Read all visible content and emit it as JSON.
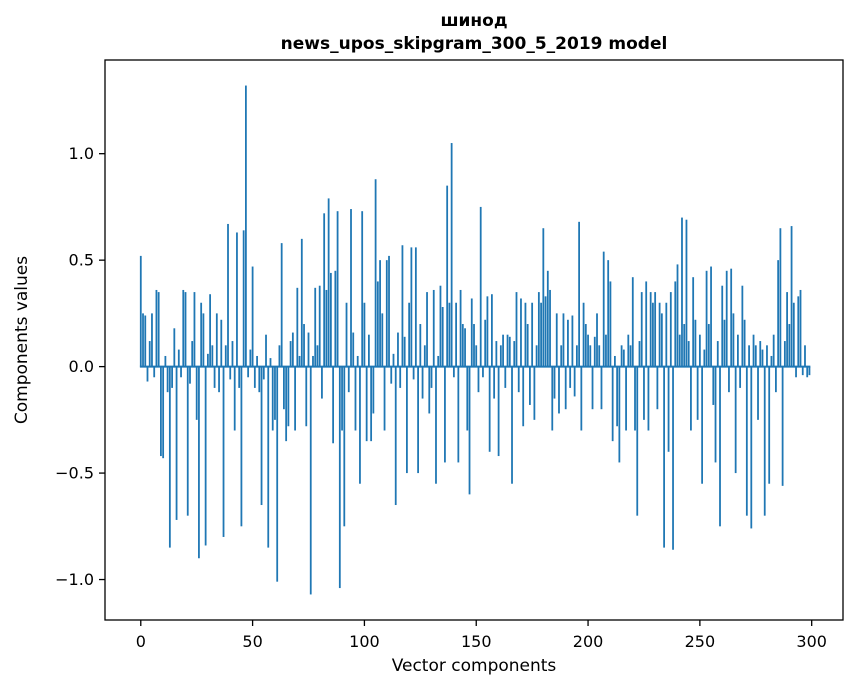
{
  "chart_data": {
    "type": "bar",
    "title_line1": "шинод",
    "title_line2": "news_upos_skipgram_300_5_2019 model",
    "xlabel": "Vector components",
    "ylabel": "Components values",
    "xlim": [
      -16,
      314
    ],
    "ylim": [
      -1.19,
      1.44
    ],
    "bar_color": "#1f77b4",
    "bar_width": 0.8,
    "x_start": 0,
    "xticks": [
      {
        "value": 0,
        "label": "0"
      },
      {
        "value": 50,
        "label": "50"
      },
      {
        "value": 100,
        "label": "100"
      },
      {
        "value": 150,
        "label": "150"
      },
      {
        "value": 200,
        "label": "200"
      },
      {
        "value": 250,
        "label": "250"
      },
      {
        "value": 300,
        "label": "300"
      }
    ],
    "yticks": [
      {
        "value": -1.0,
        "label": "−1.0"
      },
      {
        "value": -0.5,
        "label": "−0.5"
      },
      {
        "value": 0.0,
        "label": "0.0"
      },
      {
        "value": 0.5,
        "label": "0.5"
      },
      {
        "value": 1.0,
        "label": "1.0"
      }
    ],
    "values": [
      0.52,
      0.25,
      0.24,
      -0.07,
      0.12,
      0.25,
      -0.05,
      0.36,
      0.35,
      -0.42,
      -0.43,
      0.05,
      -0.12,
      -0.85,
      -0.1,
      0.18,
      -0.72,
      0.08,
      -0.05,
      0.36,
      0.35,
      -0.7,
      -0.08,
      0.12,
      0.35,
      -0.25,
      -0.9,
      0.3,
      0.25,
      -0.84,
      0.06,
      0.34,
      0.1,
      -0.1,
      0.25,
      -0.12,
      0.22,
      -0.8,
      0.1,
      0.67,
      -0.06,
      0.12,
      -0.3,
      0.63,
      -0.1,
      -0.75,
      0.64,
      1.32,
      -0.05,
      0.08,
      0.47,
      -0.1,
      0.05,
      -0.12,
      -0.65,
      -0.06,
      0.15,
      -0.85,
      0.04,
      -0.3,
      -0.25,
      -1.01,
      0.1,
      0.58,
      -0.2,
      -0.35,
      -0.28,
      0.12,
      0.16,
      -0.3,
      0.37,
      0.05,
      0.6,
      0.2,
      -0.28,
      0.16,
      -1.07,
      0.05,
      0.37,
      0.1,
      0.38,
      -0.15,
      0.72,
      0.36,
      0.79,
      0.44,
      -0.36,
      0.45,
      0.73,
      -1.04,
      -0.3,
      -0.75,
      0.3,
      -0.12,
      0.74,
      0.16,
      -0.3,
      0.05,
      -0.55,
      0.73,
      0.3,
      -0.35,
      0.15,
      -0.35,
      -0.22,
      0.88,
      0.4,
      0.5,
      0.25,
      -0.3,
      0.5,
      0.52,
      -0.08,
      0.06,
      -0.65,
      0.16,
      -0.1,
      0.57,
      0.14,
      -0.5,
      0.3,
      0.56,
      -0.06,
      0.56,
      -0.5,
      0.2,
      -0.15,
      0.1,
      0.35,
      -0.22,
      -0.1,
      0.36,
      -0.55,
      0.05,
      0.38,
      0.28,
      -0.45,
      0.85,
      0.3,
      1.05,
      -0.05,
      0.3,
      -0.45,
      0.36,
      0.2,
      0.18,
      -0.3,
      -0.6,
      0.32,
      0.2,
      0.1,
      -0.12,
      0.75,
      -0.05,
      0.22,
      0.33,
      -0.4,
      0.34,
      -0.15,
      0.12,
      -0.42,
      0.1,
      0.15,
      -0.1,
      0.15,
      0.14,
      -0.55,
      0.12,
      0.35,
      -0.12,
      0.32,
      -0.28,
      0.3,
      0.2,
      -0.18,
      0.3,
      -0.25,
      0.1,
      0.35,
      0.3,
      0.65,
      0.33,
      0.45,
      0.36,
      -0.3,
      -0.15,
      0.25,
      -0.22,
      0.1,
      0.25,
      -0.2,
      0.22,
      -0.1,
      0.24,
      -0.14,
      0.1,
      0.68,
      -0.3,
      0.3,
      0.2,
      0.15,
      0.1,
      -0.2,
      0.14,
      0.25,
      0.1,
      -0.2,
      0.54,
      0.15,
      0.5,
      0.4,
      -0.35,
      0.05,
      -0.28,
      -0.45,
      0.1,
      0.08,
      -0.3,
      0.15,
      0.1,
      0.42,
      -0.3,
      -0.7,
      0.12,
      0.35,
      -0.25,
      0.4,
      -0.3,
      0.35,
      0.3,
      0.35,
      -0.2,
      0.3,
      0.25,
      -0.85,
      0.3,
      -0.4,
      0.35,
      -0.86,
      0.4,
      0.48,
      0.15,
      0.7,
      0.2,
      0.69,
      0.12,
      -0.3,
      0.42,
      0.22,
      -0.25,
      0.15,
      -0.55,
      0.08,
      0.45,
      0.2,
      0.47,
      -0.18,
      -0.45,
      0.12,
      -0.75,
      0.38,
      0.22,
      0.45,
      -0.12,
      0.46,
      0.25,
      -0.5,
      0.15,
      -0.1,
      0.38,
      0.22,
      -0.7,
      0.1,
      -0.76,
      0.15,
      0.1,
      -0.25,
      0.12,
      0.08,
      -0.7,
      0.1,
      -0.55,
      0.05,
      0.15,
      -0.12,
      0.5,
      0.65,
      -0.56,
      0.12,
      0.35,
      0.2,
      0.66,
      0.3,
      -0.05,
      0.33,
      0.36,
      -0.04,
      0.1,
      -0.05,
      -0.04
    ]
  }
}
